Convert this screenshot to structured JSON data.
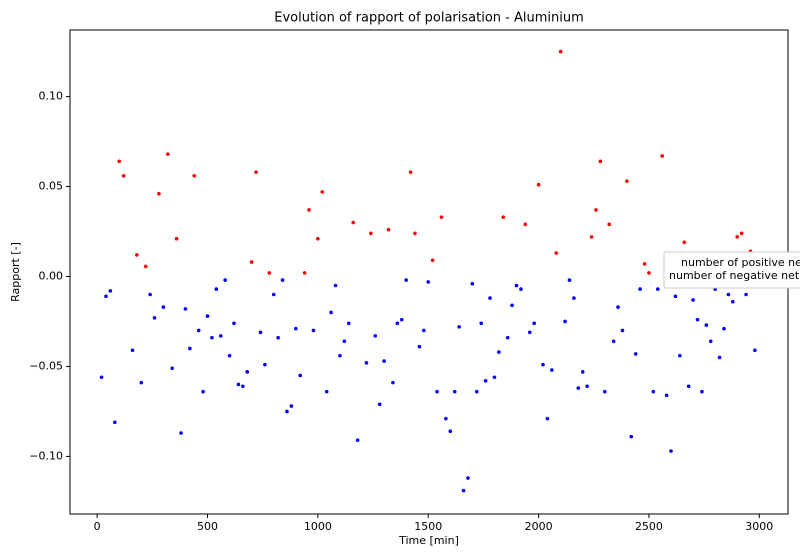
{
  "chart_data": {
    "type": "scatter",
    "title": "Evolution of rapport of polarisation - Aluminium",
    "x_label": "Time [min]",
    "y_label": "Rapport [-]",
    "xlim": [
      -123,
      3130
    ],
    "ylim": [
      -0.132,
      0.137
    ],
    "xticks": [
      0,
      500,
      1000,
      1500,
      2000,
      2500,
      3000
    ],
    "yticks": [
      {
        "value": -0.1,
        "label": "−0.10"
      },
      {
        "value": -0.05,
        "label": "−0.05"
      },
      {
        "value": 0,
        "label": "0.00"
      },
      {
        "value": 0.05,
        "label": "0.05"
      },
      {
        "value": 0.1,
        "label": "0.10"
      }
    ],
    "legend": "right",
    "series": [
      {
        "name": "number of positive ne",
        "color": "#ff0000",
        "x": [
          100,
          120,
          180,
          220,
          280,
          320,
          360,
          440,
          700,
          720,
          780,
          940,
          960,
          1000,
          1020,
          1160,
          1240,
          1320,
          1420,
          1440,
          1520,
          1560,
          1840,
          1940,
          2000,
          2080,
          2100,
          2240,
          2260,
          2280,
          2320,
          2400,
          2480,
          2500,
          2560,
          2660,
          2900,
          2920,
          2960
        ],
        "values": [
          0.064,
          0.056,
          0.012,
          0.0056,
          0.046,
          0.068,
          0.021,
          0.056,
          0.008,
          0.058,
          0.002,
          0.002,
          0.037,
          0.021,
          0.047,
          0.03,
          0.024,
          0.026,
          0.058,
          0.024,
          0.009,
          0.033,
          0.033,
          0.029,
          0.051,
          0.013,
          0.125,
          0.022,
          0.037,
          0.064,
          0.029,
          0.053,
          0.007,
          0.002,
          0.067,
          0.019,
          0.022,
          0.024,
          0.014
        ]
      },
      {
        "name": "number of negative net",
        "color": "#0000ff",
        "x": [
          20,
          40,
          60,
          80,
          160,
          200,
          240,
          260,
          300,
          340,
          380,
          400,
          420,
          460,
          480,
          500,
          520,
          540,
          560,
          580,
          600,
          620,
          640,
          660,
          680,
          740,
          760,
          800,
          820,
          840,
          860,
          880,
          900,
          920,
          980,
          1040,
          1060,
          1080,
          1100,
          1120,
          1140,
          1180,
          1220,
          1260,
          1280,
          1300,
          1340,
          1360,
          1380,
          1400,
          1460,
          1480,
          1500,
          1540,
          1580,
          1600,
          1620,
          1640,
          1660,
          1680,
          1700,
          1720,
          1740,
          1760,
          1780,
          1800,
          1820,
          1860,
          1880,
          1900,
          1920,
          1960,
          1980,
          2020,
          2040,
          2060,
          2120,
          2140,
          2160,
          2180,
          2200,
          2220,
          2300,
          2340,
          2360,
          2380,
          2420,
          2440,
          2460,
          2520,
          2540,
          2580,
          2600,
          2620,
          2640,
          2680,
          2700,
          2720,
          2740,
          2760,
          2780,
          2800,
          2820,
          2840,
          2860,
          2880,
          2940,
          2980
        ],
        "values": [
          -0.056,
          -0.011,
          -0.008,
          -0.081,
          -0.041,
          -0.059,
          -0.01,
          -0.023,
          -0.017,
          -0.051,
          -0.087,
          -0.018,
          -0.04,
          -0.03,
          -0.064,
          -0.022,
          -0.034,
          -0.007,
          -0.033,
          -0.002,
          -0.044,
          -0.026,
          -0.06,
          -0.061,
          -0.053,
          -0.031,
          -0.049,
          -0.01,
          -0.034,
          -0.002,
          -0.075,
          -0.072,
          -0.029,
          -0.055,
          -0.03,
          -0.064,
          -0.02,
          -0.005,
          -0.044,
          -0.036,
          -0.026,
          -0.091,
          -0.048,
          -0.033,
          -0.071,
          -0.047,
          -0.059,
          -0.026,
          -0.024,
          -0.002,
          -0.039,
          -0.03,
          -0.003,
          -0.064,
          -0.079,
          -0.086,
          -0.064,
          -0.028,
          -0.119,
          -0.112,
          -0.004,
          -0.064,
          -0.026,
          -0.058,
          -0.012,
          -0.056,
          -0.042,
          -0.034,
          -0.016,
          -0.005,
          -0.007,
          -0.031,
          -0.026,
          -0.049,
          -0.079,
          -0.052,
          -0.025,
          -0.002,
          -0.012,
          -0.062,
          -0.053,
          -0.061,
          -0.064,
          -0.036,
          -0.017,
          -0.03,
          -0.089,
          -0.043,
          -0.007,
          -0.064,
          -0.007,
          -0.066,
          -0.097,
          -0.011,
          -0.044,
          -0.061,
          -0.013,
          -0.024,
          -0.064,
          -0.027,
          -0.036,
          -0.007,
          -0.045,
          -0.029,
          -0.01,
          -0.014,
          -0.01,
          -0.041
        ]
      }
    ]
  }
}
